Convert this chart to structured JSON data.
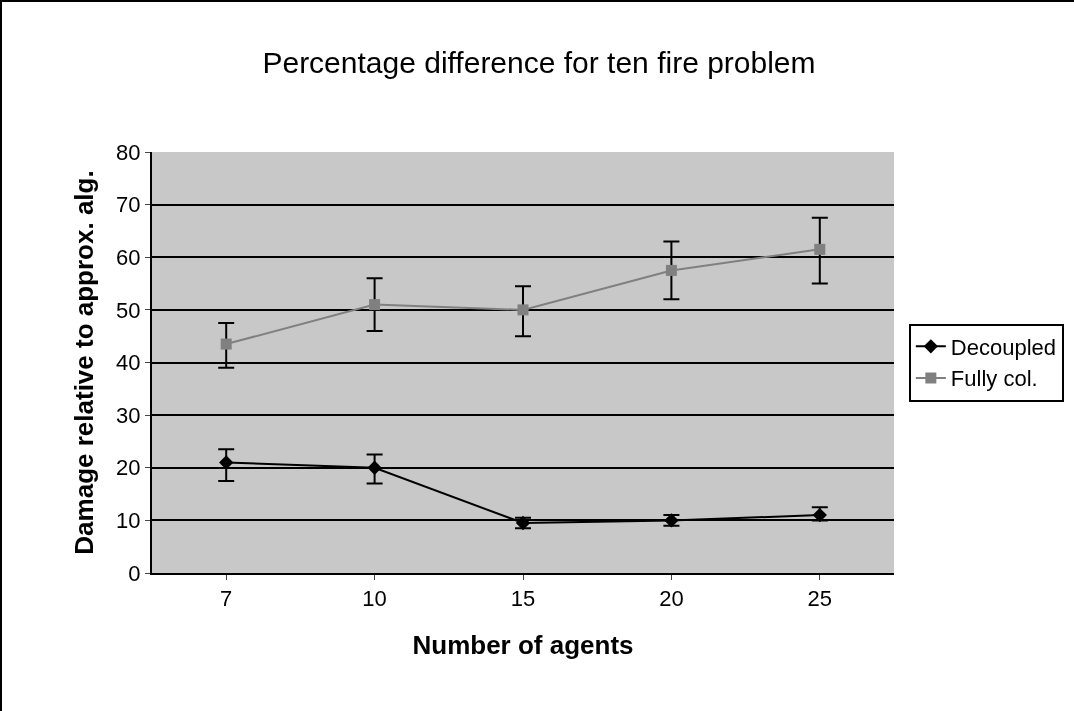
{
  "chart_data": {
    "type": "line",
    "title": "Percentage difference for ten fire problem",
    "xlabel": "Number of agents",
    "ylabel": "Damage relative to approx. alg.",
    "categories": [
      "7",
      "10",
      "15",
      "20",
      "25"
    ],
    "series": [
      {
        "name": "Decoupled",
        "color": "#000000",
        "marker": "diamond",
        "values": [
          21,
          20,
          9.5,
          10,
          11
        ],
        "errors": [
          [
            17.5,
            23.5
          ],
          [
            17,
            22.5
          ],
          [
            8.5,
            10.5
          ],
          [
            9,
            11
          ],
          [
            10,
            12.5
          ]
        ]
      },
      {
        "name": "Fully col.",
        "color": "#808080",
        "marker": "square",
        "values": [
          43.5,
          51,
          50,
          57.5,
          61.5
        ],
        "errors": [
          [
            39,
            47.5
          ],
          [
            46,
            56
          ],
          [
            45,
            54.5
          ],
          [
            52,
            63
          ],
          [
            55,
            67.5
          ]
        ]
      }
    ],
    "ylim": [
      0,
      80
    ],
    "yticks": [
      0,
      10,
      20,
      30,
      40,
      50,
      60,
      70,
      80
    ],
    "grid": "y",
    "legend": "right",
    "line_style": "solid"
  }
}
